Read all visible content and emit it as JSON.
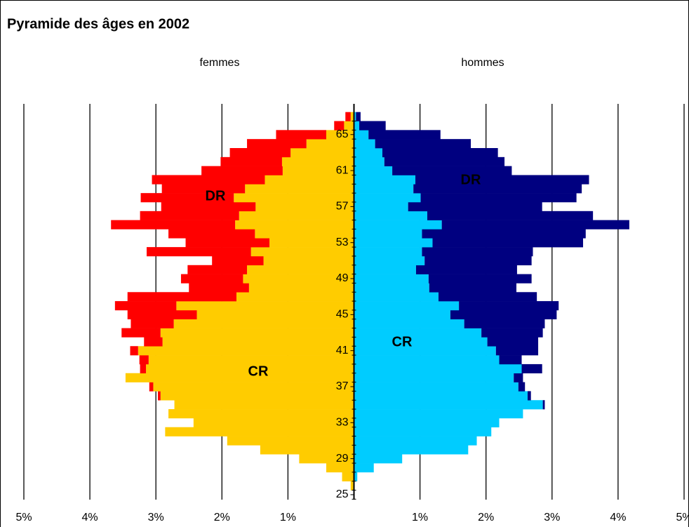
{
  "chart_data": {
    "type": "pyramid",
    "title": "Pyramide des âges en 2002",
    "categories": [
      25,
      26,
      27,
      28,
      29,
      30,
      31,
      32,
      33,
      34,
      35,
      36,
      37,
      38,
      39,
      40,
      41,
      42,
      43,
      44,
      45,
      46,
      47,
      48,
      49,
      50,
      51,
      52,
      53,
      54,
      55,
      56,
      57,
      58,
      59,
      60,
      61,
      62,
      63,
      64,
      65,
      66,
      67
    ],
    "groups": [
      {
        "label": "femmes",
        "series": [
          {
            "name": "CR",
            "color": "#ffcc00",
            "values": [
              0,
              0.05,
              0.18,
              0.42,
              0.83,
              1.42,
              1.92,
              2.86,
              2.43,
              2.81,
              2.72,
              2.93,
              3.04,
              3.46,
              3.15,
              3.11,
              3.27,
              2.9,
              2.93,
              2.73,
              2.38,
              2.69,
              1.78,
              1.59,
              1.68,
              1.62,
              1.37,
              1.56,
              1.28,
              1.5,
              1.8,
              1.74,
              1.49,
              1.82,
              1.65,
              1.35,
              1.08,
              1.09,
              0.96,
              0.72,
              0.42,
              0.15,
              0.05
            ]
          },
          {
            "name": "DR",
            "color": "#ff0000",
            "values": [
              0,
              0,
              0,
              0,
              0,
              0,
              0,
              0,
              0,
              0,
              0,
              0.04,
              0.06,
              0,
              0.09,
              0.14,
              0.12,
              0.28,
              0.59,
              0.65,
              1.05,
              0.93,
              1.65,
              0.91,
              0.94,
              0.9,
              0.78,
              1.58,
              1.27,
              1.31,
              1.88,
              1.5,
              1.43,
              1.41,
              1.26,
              1.71,
              1.23,
              0.93,
              0.92,
              0.9,
              0.76,
              0.15,
              0.08
            ]
          }
        ]
      },
      {
        "label": "hommes",
        "series": [
          {
            "name": "CR",
            "color": "#00ccff",
            "values": [
              0,
              0.01,
              0.05,
              0.3,
              0.73,
              1.73,
              1.86,
              2.08,
              2.2,
              2.56,
              2.86,
              2.63,
              2.49,
              2.42,
              2.54,
              2.2,
              2.15,
              2.02,
              1.93,
              1.67,
              1.46,
              1.59,
              1.28,
              1.14,
              1.13,
              0.94,
              1.07,
              1.03,
              1.19,
              1.03,
              1.33,
              1.11,
              0.82,
              1.01,
              0.9,
              0.93,
              0.58,
              0.46,
              0.43,
              0.32,
              0.22,
              0.08,
              0.03
            ]
          },
          {
            "name": "DR",
            "color": "#000080",
            "values": [
              0,
              0,
              0,
              0,
              0,
              0,
              0,
              0,
              0,
              0,
              0.03,
              0.05,
              0.1,
              0.14,
              0.31,
              0.34,
              0.64,
              0.77,
              0.93,
              1.22,
              1.61,
              1.51,
              1.49,
              1.32,
              1.56,
              1.53,
              1.62,
              1.68,
              2.28,
              2.48,
              2.84,
              2.51,
              2.03,
              2.36,
              2.55,
              2.63,
              1.81,
              1.82,
              1.75,
              1.45,
              1.09,
              0.4,
              0.07
            ]
          }
        ]
      }
    ],
    "xlim": [
      -5,
      5
    ],
    "xticks": [
      {
        "value": -5,
        "label": "5%"
      },
      {
        "value": -4,
        "label": "4%"
      },
      {
        "value": -3,
        "label": "3%"
      },
      {
        "value": -2,
        "label": "2%"
      },
      {
        "value": -1,
        "label": "1%"
      },
      {
        "value": 1,
        "label": "1%"
      },
      {
        "value": 2,
        "label": "2%"
      },
      {
        "value": 3,
        "label": "3%"
      },
      {
        "value": 4,
        "label": "4%"
      },
      {
        "value": 5,
        "label": "5%"
      }
    ],
    "ylim": [
      24.45,
      68.2
    ],
    "yticks": [
      25,
      29,
      33,
      37,
      41,
      45,
      49,
      53,
      57,
      61,
      65
    ],
    "grid": true
  }
}
